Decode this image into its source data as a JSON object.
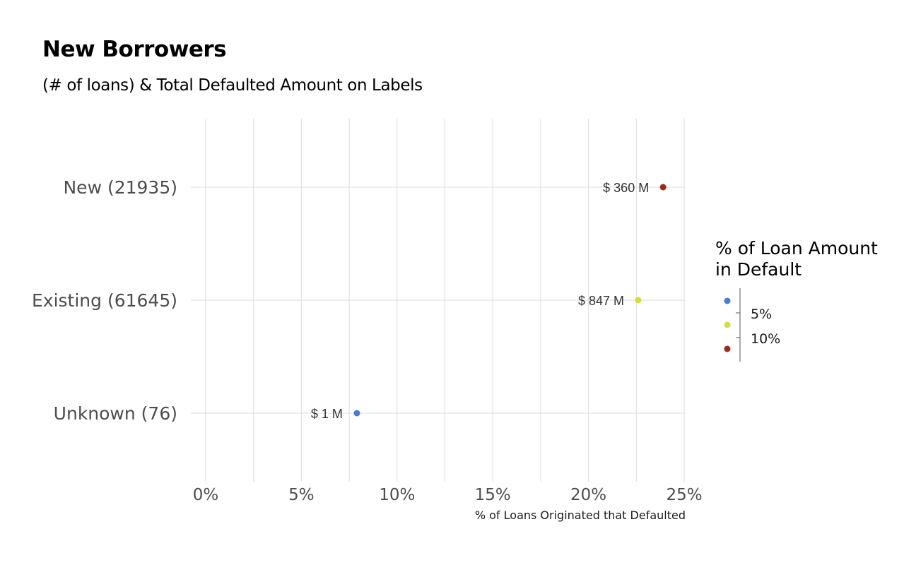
{
  "title": "New Borrowers",
  "subtitle": "(# of loans) & Total Defaulted Amount on Labels",
  "chart_data": {
    "type": "scatter",
    "categories": [
      "New (21935)",
      "Existing (61645)",
      "Unknown (76)"
    ],
    "values": [
      23.9,
      22.6,
      7.9
    ],
    "value_labels": [
      "$ 360 M",
      "$ 847 M",
      "$ 1 M"
    ],
    "point_colors": [
      "#9e2a16",
      "#d8dc3a",
      "#4a7bd0"
    ],
    "xlabel": "% of Loans Originated that Defaulted",
    "ylabel": "",
    "xlim": [
      0,
      25
    ],
    "x_ticks": [
      "0%",
      "5%",
      "10%",
      "15%",
      "20%",
      "25%"
    ],
    "grid": true,
    "legend": {
      "title_lines": [
        "% of Loan Amount",
        "in Default"
      ],
      "tick_labels": [
        "5%",
        "10%"
      ],
      "colors": [
        "#4a7bd0",
        "#d8dc3a",
        "#9e2a16"
      ],
      "placement": "right"
    }
  }
}
